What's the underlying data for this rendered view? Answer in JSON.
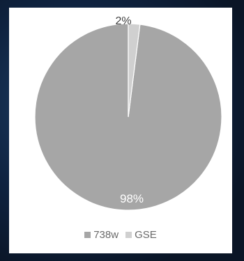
{
  "chart_data": {
    "type": "pie",
    "slices": [
      {
        "label": "738w",
        "value": 98,
        "display": "98%",
        "color": "#a6a6a6"
      },
      {
        "label": "GSE",
        "value": 2,
        "display": "2%",
        "color": "#d0d0d0"
      }
    ],
    "legend_position": "bottom",
    "slice_border": "#ffffff",
    "label_colors": {
      "inside": "#ffffff",
      "outside": "#404040"
    }
  }
}
